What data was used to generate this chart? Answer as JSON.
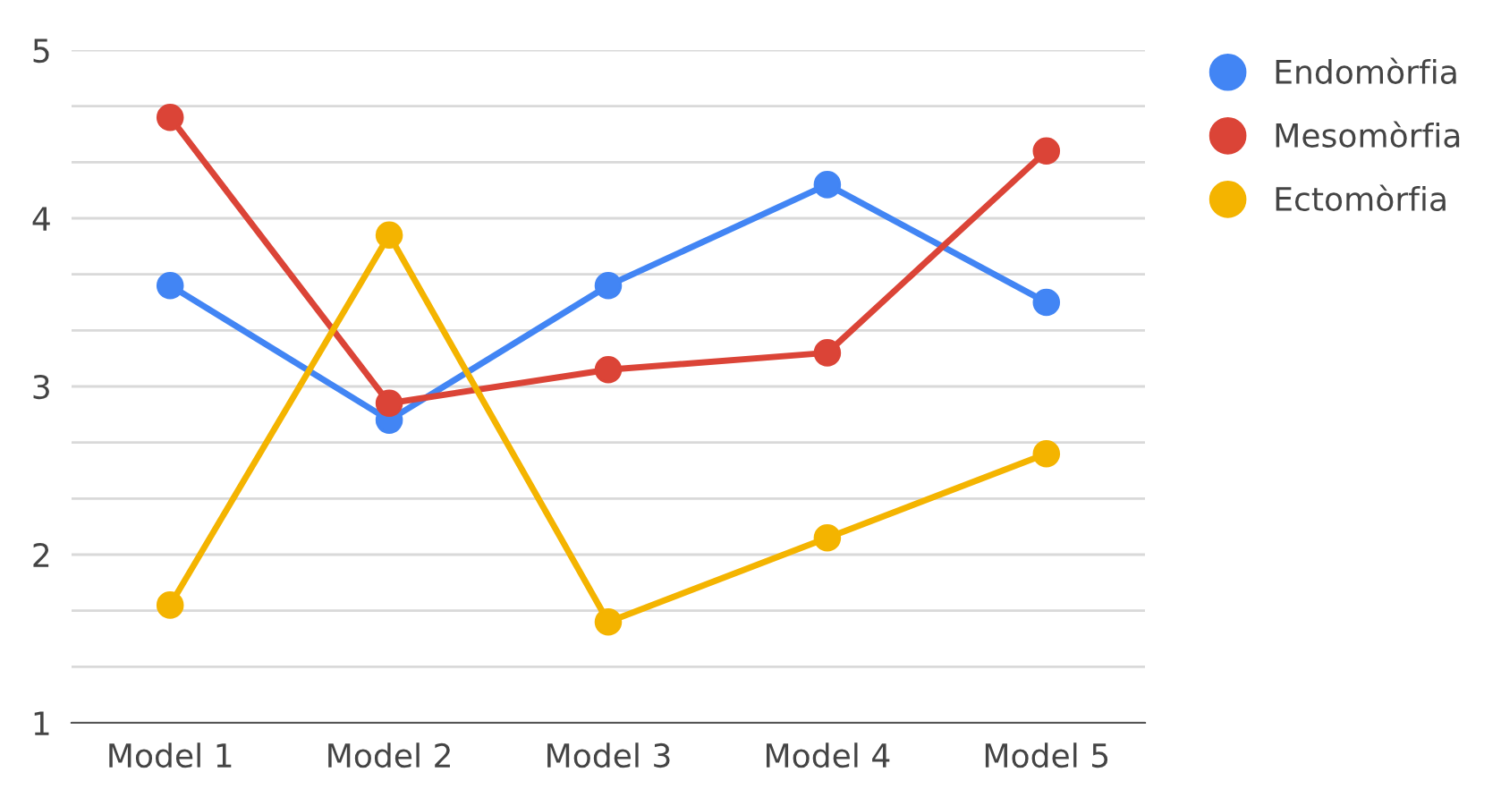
{
  "chart_data": {
    "type": "line",
    "categories": [
      "Model 1",
      "Model 2",
      "Model 3",
      "Model 4",
      "Model 5"
    ],
    "series": [
      {
        "name": "Endomòrfia",
        "color": "#4285f4",
        "values": [
          3.6,
          2.8,
          3.6,
          4.2,
          3.5
        ]
      },
      {
        "name": "Mesomòrfia",
        "color": "#db4437",
        "values": [
          4.6,
          2.9,
          3.1,
          3.2,
          4.4
        ]
      },
      {
        "name": "Ectomòrfia",
        "color": "#f4b400",
        "values": [
          1.7,
          3.9,
          1.6,
          2.1,
          2.6
        ]
      }
    ],
    "ylim": [
      1,
      5
    ],
    "yticks": [
      1,
      {
        "value": 1.333,
        "label": null
      },
      {
        "value": 1.667,
        "label": null
      },
      2,
      {
        "value": 2.333,
        "label": null
      },
      {
        "value": 2.667,
        "label": null
      },
      3,
      {
        "value": 3.333,
        "label": null
      },
      {
        "value": 3.667,
        "label": null
      },
      4,
      {
        "value": 4.333,
        "label": null
      },
      {
        "value": 4.667,
        "label": null
      },
      5
    ],
    "grid": "y",
    "legend": "top right",
    "marker": "circle",
    "line_style": "solid"
  }
}
